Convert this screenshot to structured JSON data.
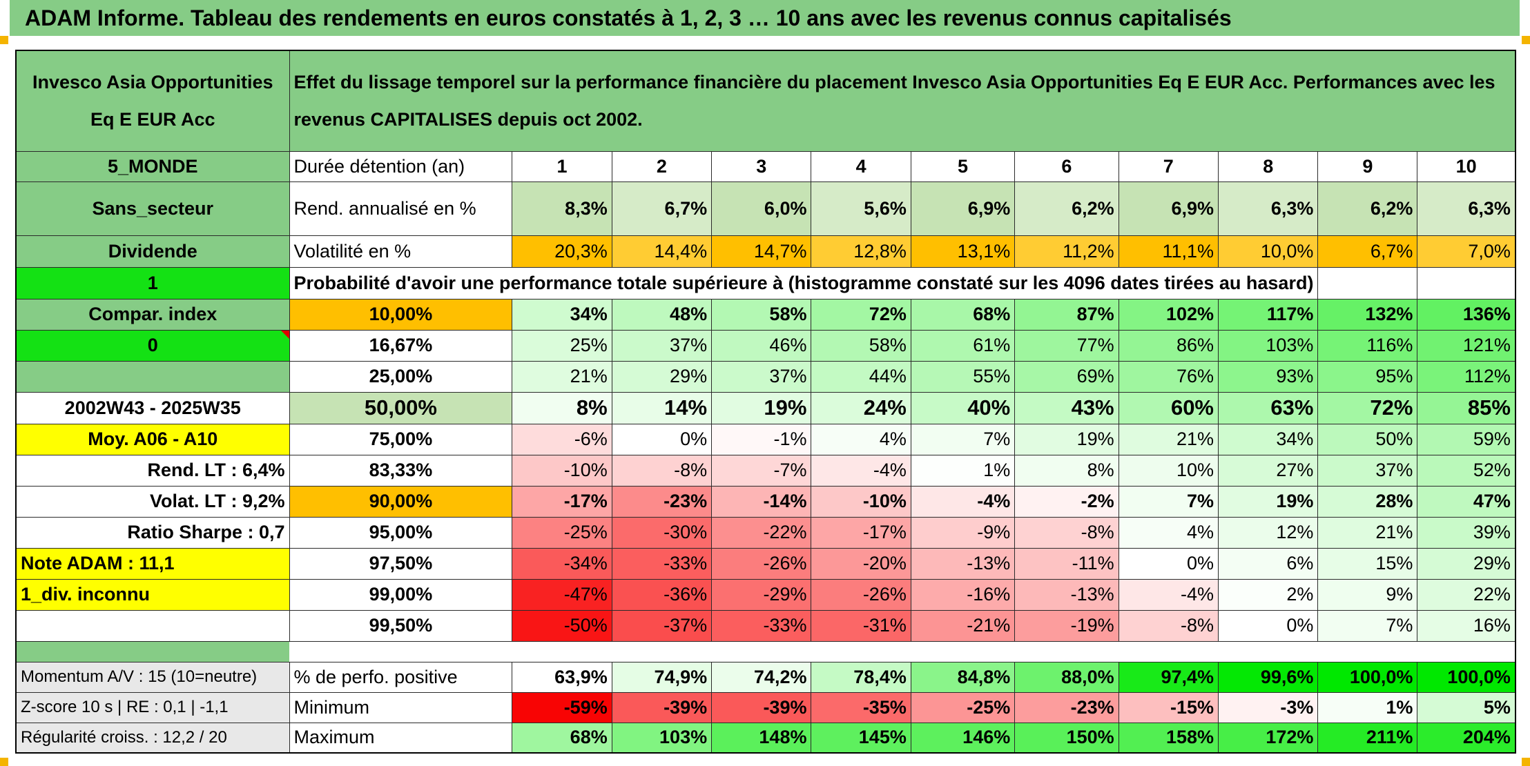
{
  "title": "ADAM Informe. Tableau des rendements en euros constatés à 1, 2, 3 … 10 ans avec les revenus connus capitalisés",
  "fund_name": "Invesco Asia Opportunities Eq E EUR Acc",
  "description": "Effet du lissage temporel sur la performance financière du placement Invesco Asia Opportunities Eq E EUR Acc. Performances avec les revenus CAPITALISES depuis oct 2002.",
  "left": {
    "zone": "5_MONDE",
    "sector": "Sans_secteur",
    "type": "Dividende",
    "index_flag": "1",
    "compar_index": "Compar. index",
    "zero_flag": "0",
    "period": "2002W43 - 2025W35",
    "moy": "Moy. A06 - A10",
    "rend_lt": "Rend. LT :   6,4%",
    "volat_lt": "Volat. LT :   9,2%",
    "sharpe": "Ratio Sharpe :   0,7",
    "note": "Note ADAM : 11,1",
    "div_note": "1_div. inconnu",
    "momentum": "Momentum A/V : 15 (10=neutre)",
    "zscore": "Z-score 10 s | RE : 0,1 | -1,1",
    "regularite": "Régularité croiss. : 12,2 / 20"
  },
  "labels": {
    "duree": "Durée détention (an)",
    "rend": "Rend. annualisé en %",
    "vol": "Volatilité en %",
    "proba": "Probabilité d'avoir une performance totale supérieure à (histogramme constaté sur les 4096 dates tirées au hasard)",
    "positive": "% de perfo. positive",
    "minimum": "Minimum",
    "maximum": "Maximum"
  },
  "years": [
    "1",
    "2",
    "3",
    "4",
    "5",
    "6",
    "7",
    "8",
    "9",
    "10"
  ],
  "rend": [
    "8,3%",
    "6,7%",
    "6,0%",
    "5,6%",
    "6,9%",
    "6,2%",
    "6,9%",
    "6,3%",
    "6,2%",
    "6,3%"
  ],
  "vol": [
    "20,3%",
    "14,4%",
    "14,7%",
    "12,8%",
    "13,1%",
    "11,2%",
    "11,1%",
    "10,0%",
    "6,7%",
    "7,0%"
  ],
  "prob_rows": [
    {
      "p": "10,00%",
      "v": [
        "34%",
        "48%",
        "58%",
        "72%",
        "68%",
        "87%",
        "102%",
        "117%",
        "132%",
        "136%"
      ]
    },
    {
      "p": "16,67%",
      "v": [
        "25%",
        "37%",
        "46%",
        "58%",
        "61%",
        "77%",
        "86%",
        "103%",
        "116%",
        "121%"
      ]
    },
    {
      "p": "25,00%",
      "v": [
        "21%",
        "29%",
        "37%",
        "44%",
        "55%",
        "69%",
        "76%",
        "93%",
        "95%",
        "112%"
      ]
    },
    {
      "p": "50,00%",
      "v": [
        "8%",
        "14%",
        "19%",
        "24%",
        "40%",
        "43%",
        "60%",
        "63%",
        "72%",
        "85%"
      ]
    },
    {
      "p": "75,00%",
      "v": [
        "-6%",
        "0%",
        "-1%",
        "4%",
        "7%",
        "19%",
        "21%",
        "34%",
        "50%",
        "59%"
      ]
    },
    {
      "p": "83,33%",
      "v": [
        "-10%",
        "-8%",
        "-7%",
        "-4%",
        "1%",
        "8%",
        "10%",
        "27%",
        "37%",
        "52%"
      ]
    },
    {
      "p": "90,00%",
      "v": [
        "-17%",
        "-23%",
        "-14%",
        "-10%",
        "-4%",
        "-2%",
        "7%",
        "19%",
        "28%",
        "47%"
      ]
    },
    {
      "p": "95,00%",
      "v": [
        "-25%",
        "-30%",
        "-22%",
        "-17%",
        "-9%",
        "-8%",
        "4%",
        "12%",
        "21%",
        "39%"
      ]
    },
    {
      "p": "97,50%",
      "v": [
        "-34%",
        "-33%",
        "-26%",
        "-20%",
        "-13%",
        "-11%",
        "0%",
        "6%",
        "15%",
        "29%"
      ]
    },
    {
      "p": "99,00%",
      "v": [
        "-47%",
        "-36%",
        "-29%",
        "-26%",
        "-16%",
        "-13%",
        "-4%",
        "2%",
        "9%",
        "22%"
      ]
    },
    {
      "p": "99,50%",
      "v": [
        "-50%",
        "-37%",
        "-33%",
        "-31%",
        "-21%",
        "-19%",
        "-8%",
        "0%",
        "7%",
        "16%"
      ]
    }
  ],
  "positive": [
    "63,9%",
    "74,9%",
    "74,2%",
    "78,4%",
    "84,8%",
    "88,0%",
    "97,4%",
    "99,6%",
    "100,0%",
    "100,0%"
  ],
  "minimum": [
    "-59%",
    "-39%",
    "-39%",
    "-35%",
    "-25%",
    "-23%",
    "-15%",
    "-3%",
    "1%",
    "5%"
  ],
  "maximum": [
    "68%",
    "103%",
    "148%",
    "145%",
    "146%",
    "150%",
    "158%",
    "172%",
    "211%",
    "204%"
  ]
}
